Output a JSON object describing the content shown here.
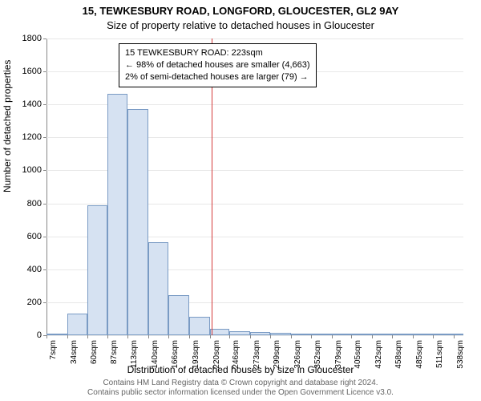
{
  "chart": {
    "type": "histogram",
    "title_line1": "15, TEWKESBURY ROAD, LONGFORD, GLOUCESTER, GL2 9AY",
    "title_line2": "Size of property relative to detached houses in Gloucester",
    "ylabel": "Number of detached properties",
    "xlabel": "Distribution of detached houses by size in Gloucester",
    "background_color": "#ffffff",
    "grid_color": "#e8e8e8",
    "bar_fill": "#d6e2f2",
    "bar_stroke": "#7a9bc4",
    "ref_line_color": "#d43a3a",
    "ylim": [
      0,
      1800
    ],
    "yticks": [
      0,
      200,
      400,
      600,
      800,
      1000,
      1200,
      1400,
      1600,
      1800
    ],
    "xtick_labels": [
      "7sqm",
      "34sqm",
      "60sqm",
      "87sqm",
      "113sqm",
      "140sqm",
      "166sqm",
      "193sqm",
      "220sqm",
      "246sqm",
      "273sqm",
      "299sqm",
      "326sqm",
      "352sqm",
      "379sqm",
      "405sqm",
      "432sqm",
      "458sqm",
      "485sqm",
      "511sqm",
      "538sqm"
    ],
    "xmin": 7,
    "xmax": 551,
    "ref_x": 223,
    "bars": [
      {
        "x0": 7,
        "x1": 34,
        "y": 10
      },
      {
        "x0": 34,
        "x1": 60,
        "y": 130
      },
      {
        "x0": 60,
        "x1": 87,
        "y": 790
      },
      {
        "x0": 87,
        "x1": 113,
        "y": 1465
      },
      {
        "x0": 113,
        "x1": 140,
        "y": 1370
      },
      {
        "x0": 140,
        "x1": 166,
        "y": 565
      },
      {
        "x0": 166,
        "x1": 193,
        "y": 245
      },
      {
        "x0": 193,
        "x1": 220,
        "y": 110
      },
      {
        "x0": 220,
        "x1": 246,
        "y": 40
      },
      {
        "x0": 246,
        "x1": 273,
        "y": 25
      },
      {
        "x0": 273,
        "x1": 299,
        "y": 18
      },
      {
        "x0": 299,
        "x1": 326,
        "y": 15
      },
      {
        "x0": 326,
        "x1": 352,
        "y": 10
      },
      {
        "x0": 352,
        "x1": 379,
        "y": 5
      },
      {
        "x0": 379,
        "x1": 405,
        "y": 3
      },
      {
        "x0": 405,
        "x1": 432,
        "y": 2
      },
      {
        "x0": 432,
        "x1": 458,
        "y": 2
      },
      {
        "x0": 458,
        "x1": 485,
        "y": 2
      },
      {
        "x0": 485,
        "x1": 511,
        "y": 1
      },
      {
        "x0": 511,
        "x1": 538,
        "y": 1
      },
      {
        "x0": 538,
        "x1": 551,
        "y": 1
      }
    ],
    "annotation": {
      "line1": "15 TEWKESBURY ROAD: 223sqm",
      "line2": "← 98% of detached houses are smaller (4,663)",
      "line3": "2% of semi-detached houses are larger (79) →"
    },
    "footer_line1": "Contains HM Land Registry data © Crown copyright and database right 2024.",
    "footer_line2": "Contains public sector information licensed under the Open Government Licence v3.0."
  }
}
